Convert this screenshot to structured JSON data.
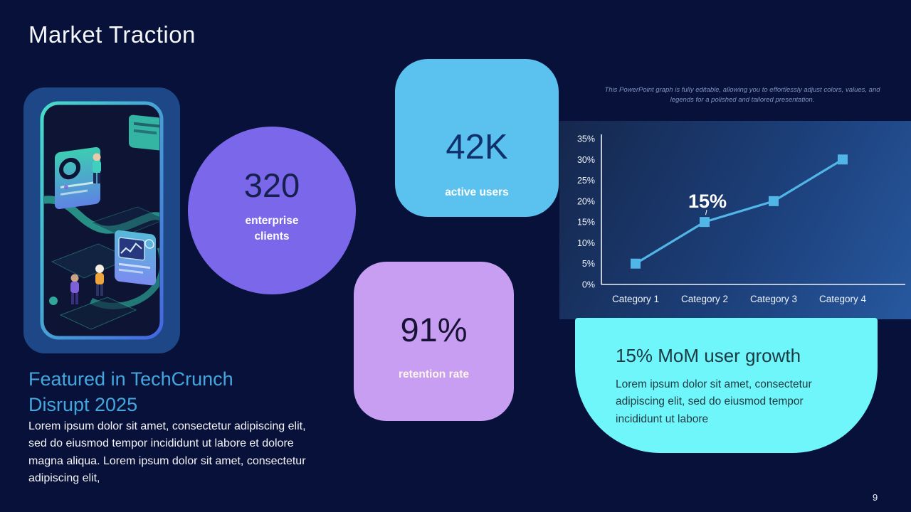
{
  "slide": {
    "title": "Market Traction",
    "page_number": "9"
  },
  "stats": [
    {
      "value": "320",
      "label": "enterprise clients",
      "shape": "circle",
      "color": "#7a67ea"
    },
    {
      "value": "42K",
      "label": "active users",
      "shape": "rounded-square",
      "color": "#5bc1ee"
    },
    {
      "value": "91%",
      "label": "retention rate",
      "shape": "rounded-square",
      "color": "#c89ef2"
    }
  ],
  "feature": {
    "heading": "Featured in TechCrunch Disrupt 2025",
    "body": "Lorem ipsum dolor sit amet, consectetur adipiscing elit, sed do eiusmod tempor incididunt ut labore et dolore magna aliqua. Lorem ipsum dolor sit amet, consectetur adipiscing elit,"
  },
  "growth_callout": {
    "heading": "15% MoM user growth",
    "body": "Lorem ipsum dolor sit amet, consectetur adipiscing elit, sed do eiusmod tempor incididunt ut labore"
  },
  "chart_note": "This PowerPoint graph is fully editable, allowing you to effortlessly adjust colors, values, and legends for a polished and tailored presentation.",
  "chart_data": {
    "type": "line",
    "title": "",
    "categories": [
      "Category 1",
      "Category 2",
      "Category 3",
      "Category 4"
    ],
    "values": [
      5,
      15,
      20,
      30
    ],
    "unit": "%",
    "ylim": [
      0,
      35
    ],
    "ytick_step": 5,
    "ytick_labels": [
      "0%",
      "5%",
      "10%",
      "15%",
      "20%",
      "25%",
      "30%",
      "35%"
    ],
    "data_label": {
      "text": "15%",
      "category": "Category 2"
    },
    "marker": "square",
    "grid": false,
    "legend": "none",
    "line_color": "#52b5e7",
    "axis_color": "#eef2f9"
  },
  "colors": {
    "background": "#081139",
    "panel_gradient_start": "#15274d",
    "panel_gradient_end": "#27589f",
    "accent_purple": "#7a67ea",
    "accent_blue": "#5bc1ee",
    "accent_lavender": "#c89ef2",
    "accent_cyan": "#6ff6fb",
    "heading_blue": "#43a7de"
  }
}
